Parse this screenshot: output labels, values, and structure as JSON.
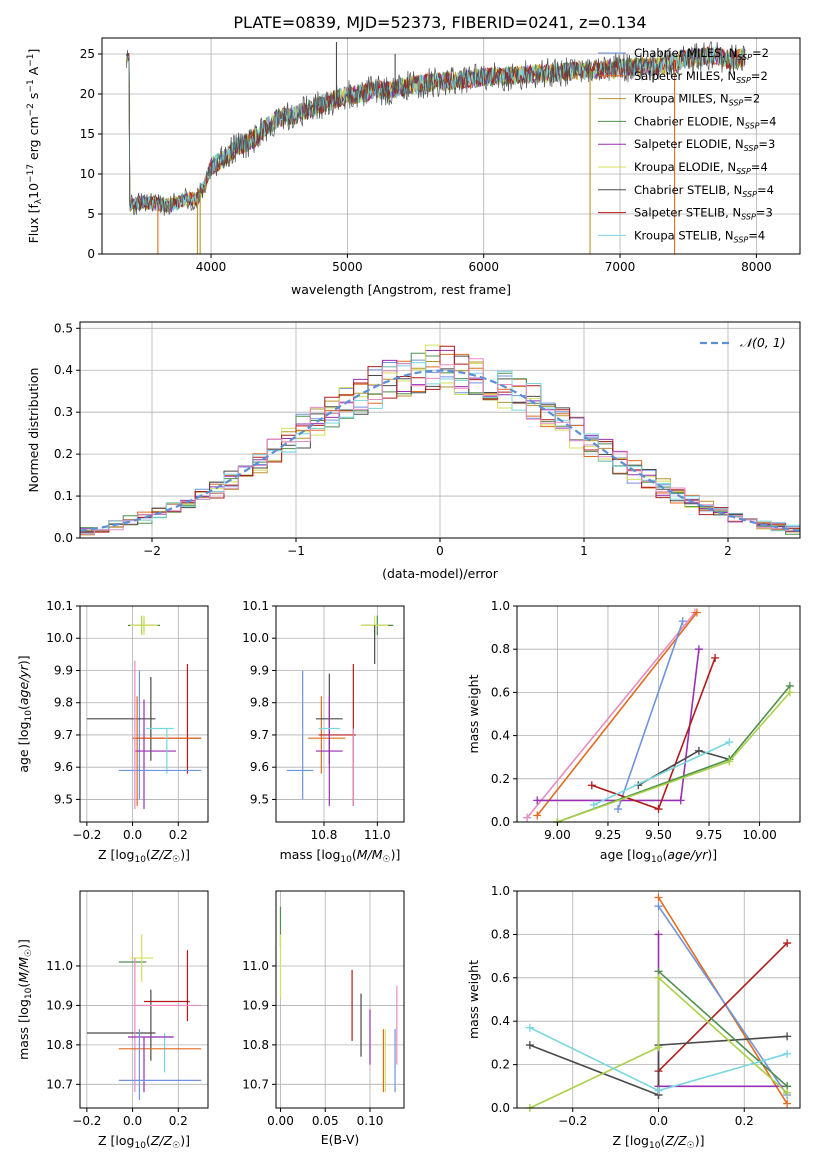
{
  "figure": {
    "title": "PLATE=0839, MJD=52373, FIBERID=0241, z=0.134"
  },
  "colors": {
    "Chabrier MILES": "#6f93dd",
    "Salpeter MILES": "#e06c1f",
    "Kroupa MILES": "#b8952c",
    "Chabrier ELODIE": "#4f8f4f",
    "Salpeter ELODIE": "#9a2fb3",
    "Kroupa ELODIE": "#d6e05a",
    "Chabrier STELIB": "#4a4a4a",
    "Salpeter STELIB": "#b11b1b",
    "Kroupa STELIB": "#77d6df",
    "pink": "#e58cc0",
    "lime": "#a9d14a",
    "normal_curve": "#5b8fd6"
  },
  "chart_data": [
    {
      "id": "spectrum",
      "type": "line",
      "xlabel": "wavelength [Angstrom, rest frame]",
      "ylabel_parts": [
        "Flux [f",
        "λ",
        "10",
        "−17",
        " erg cm",
        "−2",
        " s",
        "−1",
        " A",
        "−1",
        "]"
      ],
      "xlim": [
        3200,
        8320
      ],
      "ylim": [
        0,
        27
      ],
      "xticks": [
        4000,
        5000,
        6000,
        7000,
        8000
      ],
      "yticks": [
        0,
        5,
        10,
        15,
        20,
        25
      ],
      "legend_position": "top-right",
      "legend": [
        {
          "name": "Chabrier MILES",
          "nssp": "2"
        },
        {
          "name": "Salpeter MILES",
          "nssp": "2"
        },
        {
          "name": "Kroupa MILES",
          "nssp": "2"
        },
        {
          "name": "Chabrier ELODIE",
          "nssp": "4"
        },
        {
          "name": "Salpeter ELODIE",
          "nssp": "3"
        },
        {
          "name": "Kroupa ELODIE",
          "nssp": "4"
        },
        {
          "name": "Chabrier STELIB",
          "nssp": "4"
        },
        {
          "name": "Salpeter STELIB",
          "nssp": "3"
        },
        {
          "name": "Kroupa STELIB",
          "nssp": "4"
        }
      ],
      "legend_subscript": "SSP",
      "continuum": [
        [
          3400,
          6.0
        ],
        [
          3500,
          6.5
        ],
        [
          3600,
          6.3
        ],
        [
          3700,
          6.0
        ],
        [
          3800,
          6.8
        ],
        [
          3900,
          7.0
        ],
        [
          3950,
          8.5
        ],
        [
          4000,
          11.0
        ],
        [
          4100,
          12.0
        ],
        [
          4200,
          13.5
        ],
        [
          4300,
          14.2
        ],
        [
          4400,
          15.8
        ],
        [
          4500,
          17.0
        ],
        [
          4600,
          17.3
        ],
        [
          4700,
          18.0
        ],
        [
          4800,
          18.6
        ],
        [
          4900,
          19.3
        ],
        [
          5000,
          19.8
        ],
        [
          5100,
          20.0
        ],
        [
          5200,
          20.6
        ],
        [
          5300,
          20.4
        ],
        [
          5400,
          20.9
        ],
        [
          5500,
          21.2
        ],
        [
          5600,
          21.4
        ],
        [
          5700,
          21.6
        ],
        [
          5800,
          21.7
        ],
        [
          5900,
          21.9
        ],
        [
          6000,
          22.1
        ],
        [
          6100,
          22.2
        ],
        [
          6200,
          22.3
        ],
        [
          6300,
          22.4
        ],
        [
          6400,
          22.6
        ],
        [
          6500,
          22.6
        ],
        [
          6600,
          22.8
        ],
        [
          6700,
          22.9
        ],
        [
          6800,
          23.0
        ],
        [
          6900,
          23.1
        ],
        [
          7000,
          23.2
        ],
        [
          7100,
          23.3
        ],
        [
          7200,
          23.4
        ],
        [
          7300,
          23.5
        ],
        [
          7400,
          24.0
        ],
        [
          7500,
          24.5
        ],
        [
          7700,
          24.8
        ],
        [
          7800,
          24.2
        ],
        [
          7900,
          24.6
        ]
      ],
      "spikes": [
        [
          3610,
          0
        ],
        [
          3900,
          0
        ],
        [
          3920,
          0
        ],
        [
          6780,
          0
        ],
        [
          7400,
          0
        ],
        [
          4920,
          26.5
        ],
        [
          5350,
          25.0
        ],
        [
          7200,
          24.0
        ],
        [
          7600,
          25.5
        ]
      ]
    },
    {
      "id": "residuals",
      "type": "histogram",
      "xlabel": "(data-model)/error",
      "ylabel": "Normed distribution",
      "xlim": [
        -2.5,
        2.5
      ],
      "ylim": [
        0,
        0.515
      ],
      "xticks": [
        -2,
        -1,
        0,
        1,
        2
      ],
      "yticks": [
        0.0,
        0.1,
        0.2,
        0.3,
        0.4,
        0.5
      ],
      "bin_width": 0.1,
      "curve_label": "𝒩(0, 1)",
      "legend_position": "top-right",
      "series_colors": [
        "#6f93dd",
        "#e06c1f",
        "#b8952c",
        "#4f8f4f",
        "#9a2fb3",
        "#d6e05a",
        "#4a4a4a",
        "#b11b1b",
        "#77d6df",
        "#e58cc0"
      ]
    },
    {
      "id": "age-vs-z",
      "type": "scatter",
      "xlabel": "Z [log10(Z/Z☉)]",
      "ylabel": "age [log10(age/yr)]",
      "xlim": [
        -0.23,
        0.33
      ],
      "ylim": [
        9.43,
        10.1
      ],
      "xticks": [
        -0.2,
        0.0,
        0.2
      ],
      "yticks": [
        9.5,
        9.6,
        9.7,
        9.8,
        9.9,
        10.0,
        10.1
      ],
      "points": [
        {
          "x": 0.05,
          "y": 10.04,
          "xerr": 0.07,
          "yerr": 0.02,
          "color": "#4f8f4f"
        },
        {
          "x": 0.05,
          "y": 10.04,
          "xerr": 0.06,
          "yerr": 0.03,
          "color": "#d6e05a"
        },
        {
          "x": 0.04,
          "y": 10.04,
          "xerr": 0.0,
          "yerr": 0.03,
          "color": "#a9d14a"
        },
        {
          "x": 0.03,
          "y": 9.7,
          "xerr": 0.0,
          "yerr": 0.2,
          "color": "#6f93dd"
        },
        {
          "x": 0.08,
          "y": 9.75,
          "xerr": 0.0,
          "yerr": 0.13,
          "color": "#4a4a4a"
        },
        {
          "x": -0.05,
          "y": 9.75,
          "xerr": 0.15,
          "yerr": 0.0,
          "color": "#4a4a4a"
        },
        {
          "x": 0.24,
          "y": 9.75,
          "xerr": 0.0,
          "yerr": 0.17,
          "color": "#b11b1b"
        },
        {
          "x": 0.15,
          "y": 9.69,
          "xerr": 0.15,
          "yerr": 0.0,
          "color": "#b11b1b"
        },
        {
          "x": 0.15,
          "y": 9.69,
          "xerr": 0.15,
          "yerr": 0.0,
          "color": "#e06c1f"
        },
        {
          "x": 0.02,
          "y": 9.65,
          "xerr": 0.0,
          "yerr": 0.17,
          "color": "#e06c1f"
        },
        {
          "x": 0.05,
          "y": 9.64,
          "xerr": 0.0,
          "yerr": 0.17,
          "color": "#9a2fb3"
        },
        {
          "x": 0.1,
          "y": 9.65,
          "xerr": 0.09,
          "yerr": 0.0,
          "color": "#9a2fb3"
        },
        {
          "x": 0.12,
          "y": 9.72,
          "xerr": 0.06,
          "yerr": 0.0,
          "color": "#77d6df"
        },
        {
          "x": 0.15,
          "y": 9.65,
          "xerr": 0.0,
          "yerr": 0.07,
          "color": "#77d6df"
        },
        {
          "x": 0.12,
          "y": 9.59,
          "xerr": 0.18,
          "yerr": 0.0,
          "color": "#6f93dd"
        },
        {
          "x": 0.01,
          "y": 9.7,
          "xerr": 0.0,
          "yerr": 0.23,
          "color": "#e58cc0"
        }
      ]
    },
    {
      "id": "age-vs-mass",
      "type": "scatter",
      "xlabel": "mass [log10(M/M☉)]",
      "xlim": [
        10.62,
        11.1
      ],
      "ylim": [
        9.43,
        10.1
      ],
      "xticks": [
        10.8,
        11.0
      ],
      "yticks": [
        9.5,
        9.6,
        9.7,
        9.8,
        9.9,
        10.0,
        10.1
      ],
      "points": [
        {
          "x": 11.0,
          "y": 10.04,
          "xerr": 0.06,
          "yerr": 0.03,
          "color": "#4f8f4f"
        },
        {
          "x": 10.99,
          "y": 10.04,
          "xerr": 0.05,
          "yerr": 0.03,
          "color": "#d6e05a"
        },
        {
          "x": 10.99,
          "y": 9.98,
          "xerr": 0.0,
          "yerr": 0.06,
          "color": "#4a4a4a"
        },
        {
          "x": 10.72,
          "y": 9.7,
          "xerr": 0.0,
          "yerr": 0.2,
          "color": "#6f93dd"
        },
        {
          "x": 10.79,
          "y": 9.7,
          "xerr": 0.0,
          "yerr": 0.12,
          "color": "#e06c1f"
        },
        {
          "x": 10.82,
          "y": 9.75,
          "xerr": 0.05,
          "yerr": 0.14,
          "color": "#4a4a4a"
        },
        {
          "x": 10.91,
          "y": 9.7,
          "xerr": 0.0,
          "yerr": 0.22,
          "color": "#b11b1b"
        },
        {
          "x": 10.85,
          "y": 9.7,
          "xerr": 0.07,
          "yerr": 0.0,
          "color": "#b11b1b"
        },
        {
          "x": 10.81,
          "y": 9.69,
          "xerr": 0.07,
          "yerr": 0.0,
          "color": "#e06c1f"
        },
        {
          "x": 10.82,
          "y": 9.65,
          "xerr": 0.05,
          "yerr": 0.17,
          "color": "#9a2fb3"
        },
        {
          "x": 10.82,
          "y": 9.72,
          "xerr": 0.04,
          "yerr": 0.0,
          "color": "#77d6df"
        },
        {
          "x": 10.71,
          "y": 9.59,
          "xerr": 0.05,
          "yerr": 0.0,
          "color": "#6f93dd"
        },
        {
          "x": 10.91,
          "y": 9.6,
          "xerr": 0.0,
          "yerr": 0.12,
          "color": "#e58cc0"
        }
      ]
    },
    {
      "id": "mass-weight-vs-age",
      "type": "line",
      "xlabel": "age [log10(age/yr)]",
      "ylabel": "mass weight",
      "xlim": [
        8.8,
        10.2
      ],
      "ylim": [
        0,
        1
      ],
      "xticks": [
        9.0,
        9.25,
        9.5,
        9.75,
        10.0
      ],
      "yticks": [
        0.0,
        0.2,
        0.4,
        0.6,
        0.8,
        1.0
      ],
      "series": [
        {
          "color": "#e58cc0",
          "points": [
            [
              8.85,
              0.02
            ],
            [
              9.68,
              0.97
            ]
          ]
        },
        {
          "color": "#e06c1f",
          "points": [
            [
              8.9,
              0.03
            ],
            [
              9.69,
              0.97
            ]
          ]
        },
        {
          "color": "#6f93dd",
          "points": [
            [
              9.3,
              0.06
            ],
            [
              9.62,
              0.93
            ]
          ]
        },
        {
          "color": "#9a2fb3",
          "points": [
            [
              8.9,
              0.1
            ],
            [
              9.61,
              0.1
            ],
            [
              9.7,
              0.8
            ]
          ]
        },
        {
          "color": "#b11b1b",
          "points": [
            [
              9.17,
              0.17
            ],
            [
              9.5,
              0.06
            ],
            [
              9.78,
              0.76
            ]
          ]
        },
        {
          "color": "#4a4a4a",
          "points": [
            [
              9.4,
              0.17
            ],
            [
              9.7,
              0.33
            ],
            [
              9.85,
              0.29
            ]
          ]
        },
        {
          "color": "#4f8f4f",
          "points": [
            [
              9.0,
              0.0
            ],
            [
              9.85,
              0.29
            ],
            [
              10.15,
              0.63
            ]
          ]
        },
        {
          "color": "#a9d14a",
          "points": [
            [
              9.0,
              0.0
            ],
            [
              9.85,
              0.28
            ],
            [
              10.15,
              0.6
            ]
          ]
        },
        {
          "color": "#77d6df",
          "points": [
            [
              9.18,
              0.08
            ],
            [
              9.85,
              0.37
            ]
          ]
        }
      ]
    },
    {
      "id": "mass-vs-z",
      "type": "scatter",
      "xlabel": "Z [log10(Z/Z☉)]",
      "ylabel": "mass [log10(M/M☉)]",
      "xlim": [
        -0.23,
        0.33
      ],
      "ylim": [
        10.64,
        11.19
      ],
      "xticks": [
        -0.2,
        0.0,
        0.2
      ],
      "yticks": [
        10.7,
        10.8,
        10.9,
        11.0
      ],
      "points": [
        {
          "x": 0.0,
          "y": 11.01,
          "xerr": 0.06,
          "yerr": 0.0,
          "color": "#4f8f4f"
        },
        {
          "x": 0.04,
          "y": 11.02,
          "xerr": 0.05,
          "yerr": 0.06,
          "color": "#d6e05a"
        },
        {
          "x": 0.08,
          "y": 10.85,
          "xerr": 0.0,
          "yerr": 0.09,
          "color": "#4a4a4a"
        },
        {
          "x": -0.05,
          "y": 10.83,
          "xerr": 0.15,
          "yerr": 0.0,
          "color": "#4a4a4a"
        },
        {
          "x": 0.24,
          "y": 10.95,
          "xerr": 0.0,
          "yerr": 0.09,
          "color": "#b11b1b"
        },
        {
          "x": 0.15,
          "y": 10.91,
          "xerr": 0.1,
          "yerr": 0.0,
          "color": "#b11b1b"
        },
        {
          "x": 0.15,
          "y": 10.9,
          "xerr": 0.15,
          "yerr": 0.0,
          "color": "#e58cc0"
        },
        {
          "x": 0.01,
          "y": 10.85,
          "xerr": 0.0,
          "yerr": 0.17,
          "color": "#e58cc0"
        },
        {
          "x": 0.12,
          "y": 10.82,
          "xerr": 0.06,
          "yerr": 0.0,
          "color": "#77d6df"
        },
        {
          "x": 0.14,
          "y": 10.78,
          "xerr": 0.0,
          "yerr": 0.05,
          "color": "#77d6df"
        },
        {
          "x": 0.08,
          "y": 10.82,
          "xerr": 0.1,
          "yerr": 0.0,
          "color": "#9a2fb3"
        },
        {
          "x": 0.12,
          "y": 10.79,
          "xerr": 0.18,
          "yerr": 0.0,
          "color": "#e06c1f"
        },
        {
          "x": 0.05,
          "y": 10.75,
          "xerr": 0.0,
          "yerr": 0.07,
          "color": "#9a2fb3"
        },
        {
          "x": 0.03,
          "y": 10.75,
          "xerr": 0.0,
          "yerr": 0.09,
          "color": "#6f93dd"
        },
        {
          "x": 0.12,
          "y": 10.71,
          "xerr": 0.18,
          "yerr": 0.0,
          "color": "#6f93dd"
        }
      ]
    },
    {
      "id": "mass-vs-ebv",
      "type": "scatter",
      "xlabel": "E(B-V)",
      "xlim": [
        -0.005,
        0.138
      ],
      "ylim": [
        10.64,
        11.19
      ],
      "xticks": [
        0.0,
        0.05,
        0.1
      ],
      "xtick_labels": [
        "0.00",
        "0.05",
        "0.10"
      ],
      "yticks": [
        10.7,
        10.8,
        10.9,
        11.0
      ],
      "points": [
        {
          "x": 0.0,
          "y": 11.1,
          "yerr": 0.05,
          "color": "#4f8f4f"
        },
        {
          "x": 0.0,
          "y": 11.0,
          "yerr": 0.08,
          "color": "#d6e05a"
        },
        {
          "x": 0.08,
          "y": 10.9,
          "yerr": 0.09,
          "color": "#b11b1b"
        },
        {
          "x": 0.09,
          "y": 10.85,
          "yerr": 0.08,
          "color": "#4a4a4a"
        },
        {
          "x": 0.1,
          "y": 10.82,
          "yerr": 0.07,
          "color": "#9a2fb3"
        },
        {
          "x": 0.115,
          "y": 10.76,
          "yerr": 0.08,
          "color": "#e06c1f"
        },
        {
          "x": 0.117,
          "y": 10.76,
          "yerr": 0.08,
          "color": "#d6e05a"
        },
        {
          "x": 0.128,
          "y": 10.76,
          "yerr": 0.08,
          "color": "#6f93dd"
        },
        {
          "x": 0.13,
          "y": 10.85,
          "yerr": 0.1,
          "color": "#e58cc0"
        }
      ]
    },
    {
      "id": "mass-weight-vs-z",
      "type": "line",
      "xlabel": "Z [log10(Z/Z☉)]",
      "ylabel": "mass weight",
      "xlim": [
        -0.33,
        0.33
      ],
      "ylim": [
        0,
        1
      ],
      "xticks": [
        -0.2,
        0.0,
        0.2
      ],
      "yticks": [
        0.0,
        0.2,
        0.4,
        0.6,
        0.8,
        1.0
      ],
      "series": [
        {
          "color": "#e06c1f",
          "points": [
            [
              0.0,
              0.97
            ],
            [
              0.3,
              0.02
            ]
          ]
        },
        {
          "color": "#6f93dd",
          "points": [
            [
              0.0,
              0.93
            ],
            [
              0.3,
              0.06
            ]
          ]
        },
        {
          "color": "#9a2fb3",
          "points": [
            [
              0.0,
              0.8
            ],
            [
              0.0,
              0.1
            ],
            [
              0.3,
              0.1
            ]
          ]
        },
        {
          "color": "#b11b1b",
          "points": [
            [
              0.0,
              0.06
            ],
            [
              0.0,
              0.17
            ],
            [
              0.3,
              0.76
            ]
          ]
        },
        {
          "color": "#4a4a4a",
          "points": [
            [
              -0.3,
              0.29
            ],
            [
              0.0,
              0.06
            ],
            [
              0.0,
              0.29
            ],
            [
              0.3,
              0.33
            ]
          ]
        },
        {
          "color": "#4f8f4f",
          "points": [
            [
              0.0,
              0.63
            ],
            [
              0.3,
              0.1
            ]
          ]
        },
        {
          "color": "#a9d14a",
          "points": [
            [
              -0.3,
              0.0
            ],
            [
              0.0,
              0.28
            ],
            [
              0.0,
              0.6
            ],
            [
              0.3,
              0.07
            ]
          ]
        },
        {
          "color": "#77d6df",
          "points": [
            [
              -0.3,
              0.37
            ],
            [
              0.0,
              0.08
            ],
            [
              0.3,
              0.25
            ]
          ]
        }
      ]
    }
  ]
}
